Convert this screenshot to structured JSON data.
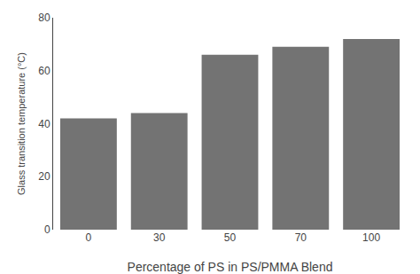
{
  "chart_data": {
    "type": "bar",
    "categories": [
      "0",
      "30",
      "50",
      "70",
      "100"
    ],
    "values": [
      42,
      44,
      66,
      69,
      72
    ],
    "color": "#737373",
    "xlabel": "Percentage of PS in PS/PMMA Blend",
    "ylabel": "Glass transition temperature (°C)",
    "ylim": [
      0,
      80
    ],
    "yticks": [
      0,
      20,
      40,
      60,
      80
    ],
    "grid": false
  }
}
